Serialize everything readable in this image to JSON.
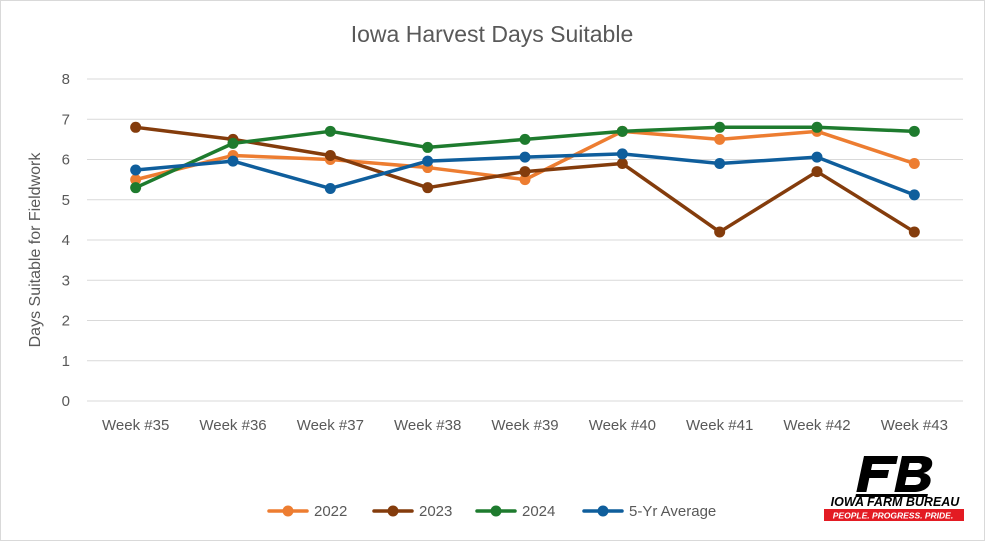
{
  "chart_data": {
    "type": "line",
    "title": "Iowa Harvest Days Suitable",
    "xlabel": "",
    "ylabel": "Days Suitable for Fieldwork",
    "ylim": [
      0,
      8
    ],
    "yticks": [
      "0",
      "1",
      "2",
      "3",
      "4",
      "5",
      "6",
      "7",
      "8"
    ],
    "grid": true,
    "legend_position": "bottom",
    "categories": [
      "Week #35",
      "Week #36",
      "Week #37",
      "Week #38",
      "Week #39",
      "Week #40",
      "Week #41",
      "Week #42",
      "Week #43"
    ],
    "series": [
      {
        "name": "2022",
        "color": "#ED7D31",
        "values": [
          5.5,
          6.1,
          6.0,
          5.8,
          5.5,
          6.7,
          6.5,
          6.7,
          5.9
        ]
      },
      {
        "name": "2023",
        "color": "#843C0C",
        "values": [
          6.8,
          6.5,
          6.1,
          5.3,
          5.7,
          5.9,
          4.2,
          5.7,
          4.2
        ]
      },
      {
        "name": "2024",
        "color": "#1E7B2E",
        "values": [
          5.3,
          6.4,
          6.7,
          6.3,
          6.5,
          6.7,
          6.8,
          6.8,
          6.7
        ]
      },
      {
        "name": "5-Yr Average",
        "color": "#0F5E9C",
        "values": [
          5.74,
          5.96,
          5.28,
          5.96,
          6.06,
          6.14,
          5.9,
          6.06,
          5.12
        ]
      }
    ]
  },
  "logo": {
    "name": "IOWA FARM BUREAU",
    "tagline": "PEOPLE. PROGRESS. PRIDE.",
    "mark": "FB",
    "colors": {
      "primary": "#000000",
      "accent": "#E31B23"
    }
  }
}
